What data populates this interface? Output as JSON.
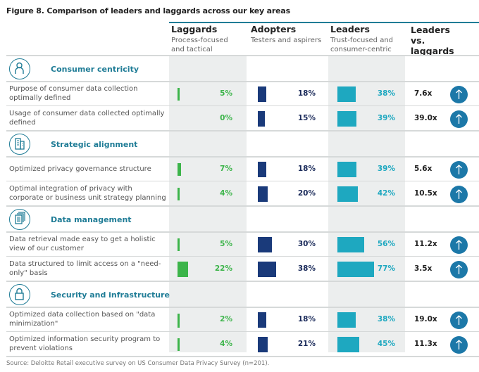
{
  "title": "Figure 8. Comparison of leaders and laggards across our key areas",
  "columns": [
    {
      "heading": "Laggards",
      "sub": "Process-focused and tactical"
    },
    {
      "heading": "Adopters",
      "sub": "Testers and aspirers"
    },
    {
      "heading": "Leaders",
      "sub": "Trust-focused and consumer-centric"
    },
    {
      "heading": "Leaders vs. laggards",
      "sub": ""
    }
  ],
  "colors": {
    "laggards": "#3cb44a",
    "adopters": "#1a3a7a",
    "leaders": "#1ea8c0",
    "section": "#1f7c96",
    "arrow": "#1c78a8"
  },
  "chart_data": {
    "type": "table",
    "sections": [
      {
        "name": "Consumer centricity",
        "icon": "person-icon",
        "rows": [
          {
            "label": "Purpose of consumer data collection optimally defined",
            "laggards": "5%",
            "adopters": "18%",
            "leaders": "38%",
            "ratio": "7.6x"
          },
          {
            "label": "Usage of consumer data collected optimally defined",
            "laggards": "0%",
            "adopters": "15%",
            "leaders": "39%",
            "ratio": "39.0x"
          }
        ]
      },
      {
        "name": "Strategic alignment",
        "icon": "building-icon",
        "rows": [
          {
            "label": "Optimized privacy governance structure",
            "laggards": "7%",
            "adopters": "18%",
            "leaders": "39%",
            "ratio": "5.6x"
          },
          {
            "label": "Optimal integration of privacy with corporate or business unit strategy planning",
            "laggards": "4%",
            "adopters": "20%",
            "leaders": "42%",
            "ratio": "10.5x"
          }
        ]
      },
      {
        "name": "Data management",
        "icon": "documents-icon",
        "rows": [
          {
            "label": "Data retrieval made easy to get a holistic view of our customer",
            "laggards": "5%",
            "adopters": "30%",
            "leaders": "56%",
            "ratio": "11.2x"
          },
          {
            "label": "Data structured to limit access on a \"need-only\" basis",
            "laggards": "22%",
            "adopters": "38%",
            "leaders": "77%",
            "ratio": "3.5x"
          }
        ]
      },
      {
        "name": "Security and infrastructure",
        "icon": "lock-icon",
        "rows": [
          {
            "label": "Optimized data collection based on \"data minimization\"",
            "laggards": "2%",
            "adopters": "18%",
            "leaders": "38%",
            "ratio": "19.0x"
          },
          {
            "label": "Optimized information security program to prevent violations",
            "laggards": "4%",
            "adopters": "21%",
            "leaders": "45%",
            "ratio": "11.3x"
          }
        ]
      }
    ]
  },
  "source": "Source: Deloitte Retail executive survey on US Consumer Data Privacy Survey (n=201)."
}
